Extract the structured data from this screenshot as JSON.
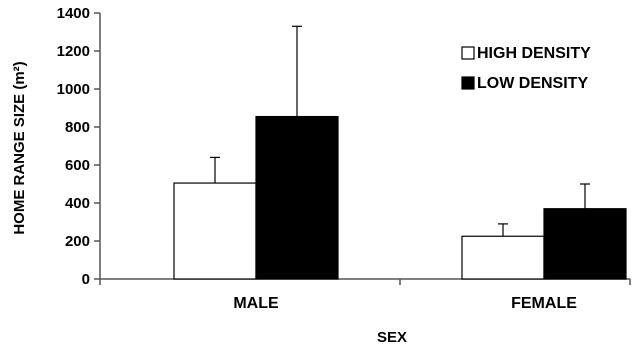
{
  "chart_data": {
    "type": "bar",
    "title": "",
    "xlabel": "SEX",
    "ylabel": "HOME RANGE SIZE (m²)",
    "ylim": [
      0,
      1400
    ],
    "yticks": [
      0,
      200,
      400,
      600,
      800,
      1000,
      1200,
      1400
    ],
    "categories": [
      "MALE",
      "FEMALE"
    ],
    "series": [
      {
        "name": "HIGH DENSITY",
        "color": "#ffffff",
        "values": [
          505,
          225
        ],
        "errors": [
          135,
          65
        ]
      },
      {
        "name": "LOW DENSITY",
        "color": "#000000",
        "values": [
          855,
          370
        ],
        "errors": [
          475,
          130
        ]
      }
    ],
    "legend": {
      "placement": "top-right"
    },
    "grid": false
  }
}
